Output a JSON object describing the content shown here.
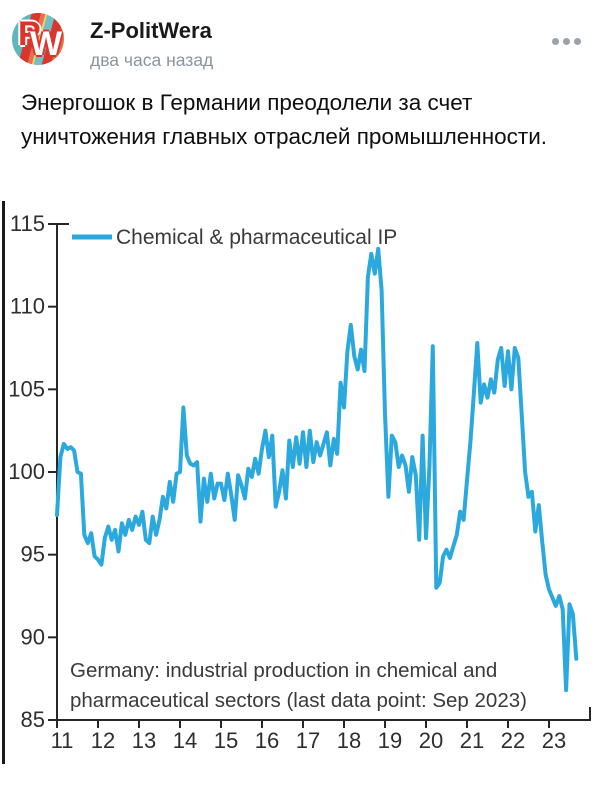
{
  "header": {
    "channel_name": "Z-PolitWera",
    "timestamp": "два часа назад"
  },
  "avatar": {
    "letter_1": "P",
    "letter_2": "W"
  },
  "post": {
    "text": "Энергошок в Германии преодолели за счет уничтожения главных отраслей промышленности."
  },
  "chart_data": {
    "type": "line",
    "title": "",
    "legend": "Chemical & pharmaceutical IP",
    "annotation_line1": "Germany: industrial production in chemical and",
    "annotation_line2": "pharmaceutical sectors (last data point: Sep 2023)",
    "x_tick_labels": [
      "11",
      "12",
      "13",
      "14",
      "15",
      "16",
      "17",
      "18",
      "19",
      "20",
      "21",
      "22",
      "23"
    ],
    "y_ticks": [
      115,
      110,
      105,
      100,
      95,
      90,
      85
    ],
    "ylim": [
      85,
      115
    ],
    "grid": false,
    "legend_position": "top-left-inside",
    "x_start": "2011-01",
    "x_end": "2023-09",
    "series": [
      {
        "name": "Chemical & pharmaceutical IP",
        "color": "#2BA9DF",
        "frequency": "monthly",
        "start": "2011-01",
        "values": [
          97.4,
          100.9,
          101.7,
          101.4,
          101.5,
          101.3,
          100.0,
          99.9,
          96.2,
          95.7,
          96.3,
          94.9,
          94.7,
          94.4,
          96.0,
          96.7,
          95.9,
          96.5,
          95.2,
          96.9,
          96.2,
          97.1,
          96.5,
          97.3,
          96.8,
          97.6,
          95.9,
          95.7,
          97.3,
          96.2,
          97.1,
          98.5,
          97.8,
          99.4,
          98.2,
          99.9,
          100.0,
          103.9,
          101.0,
          100.5,
          100.4,
          100.6,
          97.0,
          99.6,
          98.2,
          99.9,
          98.4,
          99.3,
          99.3,
          98.3,
          99.9,
          98.6,
          97.1,
          99.8,
          99.2,
          98.4,
          100.2,
          99.7,
          100.8,
          99.9,
          101.4,
          102.5,
          100.9,
          102.2,
          97.9,
          98.8,
          100.1,
          98.4,
          101.9,
          100.3,
          102.1,
          100.5,
          102.4,
          100.3,
          102.5,
          100.6,
          101.8,
          101.0,
          101.7,
          102.4,
          100.4,
          102.0,
          101.1,
          105.4,
          103.9,
          107.3,
          108.9,
          107.0,
          106.2,
          107.4,
          106.1,
          111.8,
          113.2,
          112.0,
          113.5,
          111.0,
          103.5,
          98.5,
          102.2,
          101.8,
          100.3,
          101.0,
          100.4,
          98.8,
          100.9,
          99.8,
          95.9,
          102.2,
          96.0,
          100.3,
          107.6,
          93.0,
          93.3,
          94.9,
          95.3,
          94.8,
          95.5,
          96.2,
          97.6,
          97.1,
          99.5,
          101.8,
          104.7,
          107.8,
          104.2,
          105.3,
          104.5,
          105.6,
          104.8,
          106.8,
          107.5,
          105.2,
          107.3,
          105.0,
          107.5,
          106.9,
          103.5,
          100.0,
          98.5,
          98.8,
          96.4,
          98.0,
          95.8,
          93.8,
          92.9,
          92.4,
          91.9,
          92.5,
          91.7,
          86.8,
          92.0,
          91.4,
          88.7
        ]
      }
    ]
  },
  "colors": {
    "line": "#2BA9DF",
    "axis": "#262626",
    "chart_text": "#3a3a3a",
    "name_text": "#1a1a1a",
    "timestamp_text": "#8b949c",
    "menu_dots": "#9aa2aa"
  }
}
